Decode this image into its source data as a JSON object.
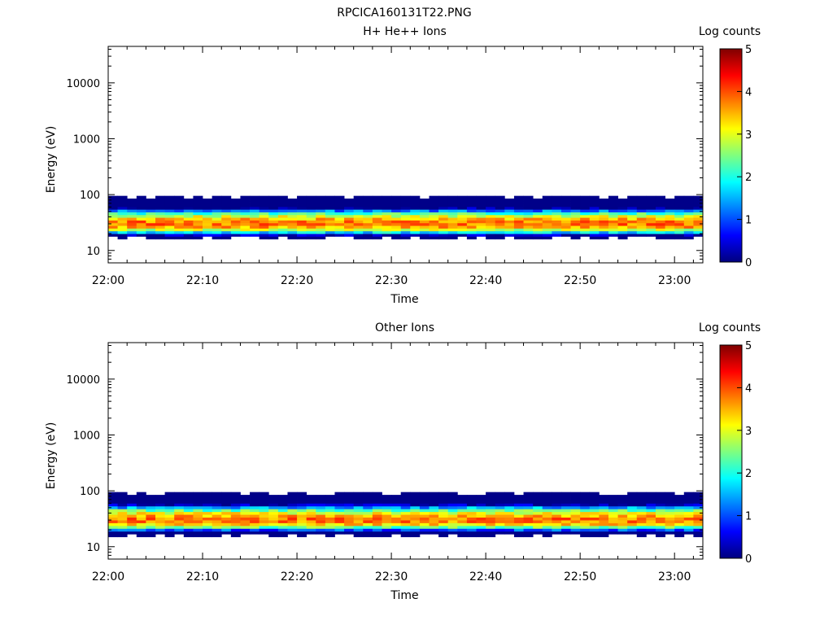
{
  "page_title": "RPCICA160131T22.PNG",
  "colors": {
    "background": "#ffffff",
    "axis": "#000000",
    "colormap": [
      "#00007f",
      "#0000ff",
      "#007fff",
      "#00ffff",
      "#7fff7f",
      "#ffff00",
      "#ff7f00",
      "#ff0000",
      "#7f0000"
    ]
  },
  "chart_data": [
    {
      "type": "heatmap",
      "title": "H+ He++ Ions",
      "xlabel": "Time",
      "ylabel": "Energy (eV)",
      "x_ticks": [
        "22:00",
        "22:10",
        "22:20",
        "22:30",
        "22:40",
        "22:50",
        "23:00"
      ],
      "y_ticks": [
        "10",
        "100",
        "1000",
        "10000"
      ],
      "y_scale": "log",
      "ylim": [
        6,
        45000
      ],
      "xlim": [
        "22:00",
        "23:03"
      ],
      "x_start": "22:00",
      "x_end": "23:03",
      "energy_band_eV": [
        16,
        95
      ],
      "colorbar": {
        "label": "Log counts",
        "ticks": [
          "0",
          "1",
          "2",
          "3",
          "4",
          "5"
        ],
        "range": [
          0,
          5
        ]
      },
      "peak_log_counts": 4.0,
      "peak_energy_eV": 30
    },
    {
      "type": "heatmap",
      "title": "Other Ions",
      "xlabel": "Time",
      "ylabel": "Energy (eV)",
      "x_ticks": [
        "22:00",
        "22:10",
        "22:20",
        "22:30",
        "22:40",
        "22:50",
        "23:00"
      ],
      "y_ticks": [
        "10",
        "100",
        "1000",
        "10000"
      ],
      "y_scale": "log",
      "ylim": [
        6,
        45000
      ],
      "xlim": [
        "22:00",
        "23:03"
      ],
      "x_start": "22:00",
      "x_end": "23:03",
      "energy_band_eV": [
        15,
        95
      ],
      "colorbar": {
        "label": "Log counts",
        "ticks": [
          "0",
          "1",
          "2",
          "3",
          "4",
          "5"
        ],
        "range": [
          0,
          5
        ]
      },
      "peak_log_counts": 4.0,
      "peak_energy_eV": 30
    }
  ]
}
